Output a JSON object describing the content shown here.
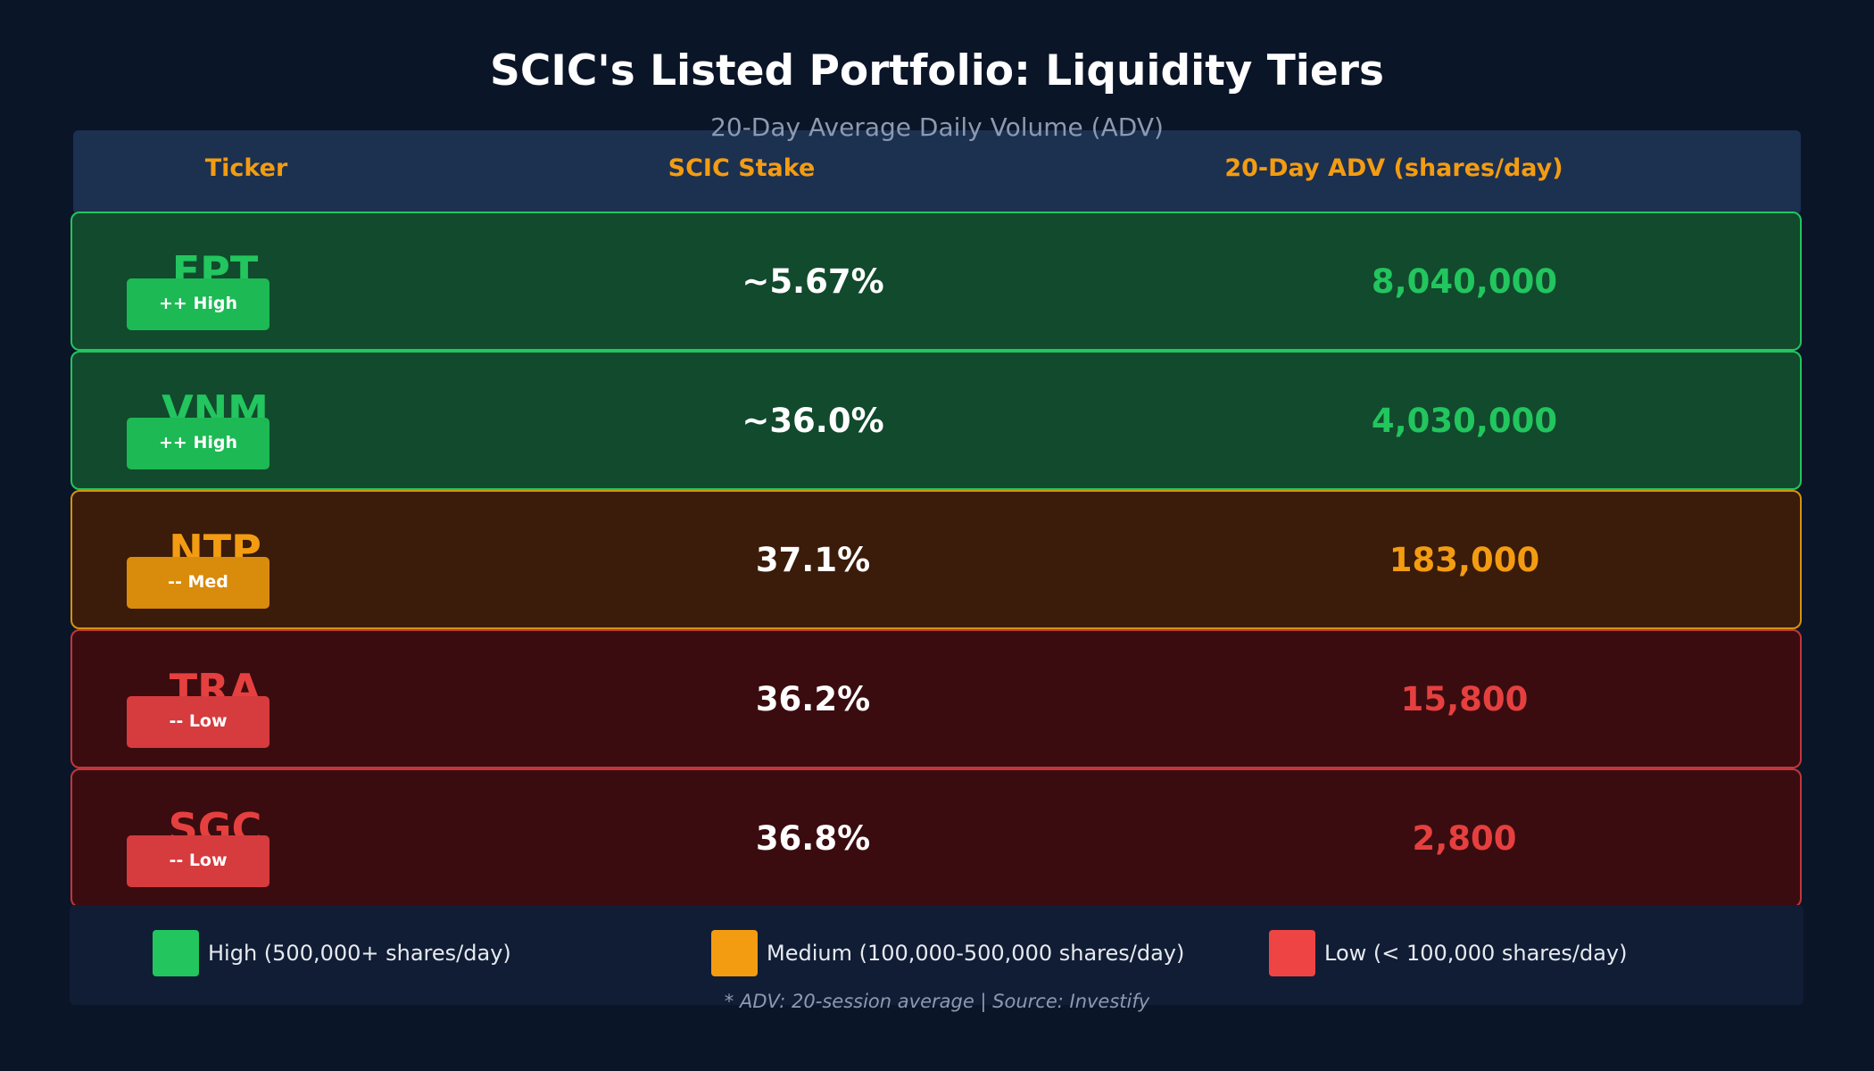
{
  "chart_data": {
    "type": "table",
    "title": "SCIC's Listed Portfolio: Liquidity Tiers",
    "subtitle": "20-Day Average Daily Volume (ADV)",
    "columns": [
      "Ticker",
      "SCIC Stake",
      "20-Day ADV (shares/day)"
    ],
    "rows": [
      {
        "ticker": "FPT",
        "tier": "high",
        "badge": "++ High",
        "stake": "~5.67%",
        "adv": "8,040,000",
        "adv_value": 8040000
      },
      {
        "ticker": "VNM",
        "tier": "high",
        "badge": "++ High",
        "stake": "~36.0%",
        "adv": "4,030,000",
        "adv_value": 4030000
      },
      {
        "ticker": "NTP",
        "tier": "medium",
        "badge": "-- Med",
        "stake": "37.1%",
        "adv": "183,000",
        "adv_value": 183000
      },
      {
        "ticker": "TRA",
        "tier": "low",
        "badge": "-- Low",
        "stake": "36.2%",
        "adv": "15,800",
        "adv_value": 15800
      },
      {
        "ticker": "SGC",
        "tier": "low",
        "badge": "-- Low",
        "stake": "36.8%",
        "adv": "2,800",
        "adv_value": 2800
      }
    ],
    "legend": [
      {
        "tier": "high",
        "label": "High (500,000+ shares/day)"
      },
      {
        "tier": "medium",
        "label": "Medium (100,000-500,000 shares/day)"
      },
      {
        "tier": "low",
        "label": "Low (< 100,000 shares/day)"
      }
    ],
    "footnote": "* ADV: 20-session average  |  Source: Investify"
  },
  "colors": {
    "background": "#0b1528",
    "header_band": "#1c3050",
    "header_text": "#f39c12",
    "legend_band": "#111d35",
    "high": {
      "bg": "#114a2d",
      "border": "#22c55e",
      "text": "#22c55e",
      "badge": "#1db954",
      "swatch": "#22c55e"
    },
    "medium": {
      "bg": "#3b1b09",
      "border": "#d4930f",
      "text": "#f39c12",
      "badge": "#d98b0b",
      "swatch": "#f39c12"
    },
    "low": {
      "bg": "#3a0c10",
      "border": "#c2363a",
      "text": "#e5403f",
      "badge": "#d63b3e",
      "swatch": "#ef4444"
    }
  }
}
